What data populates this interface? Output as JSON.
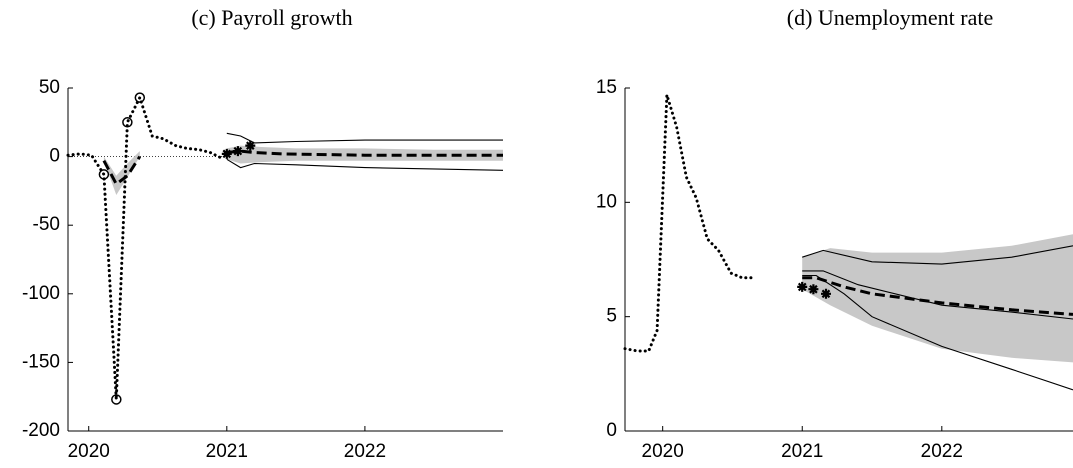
{
  "chart_data": [
    {
      "type": "line",
      "title": "(c) Payroll growth",
      "xlim": [
        2019.85,
        2023.0
      ],
      "xticks": [
        2020,
        2021,
        2022
      ],
      "ylim": [
        -200,
        50
      ],
      "yticks": [
        -200,
        -150,
        -100,
        -50,
        0,
        50
      ],
      "hline": 0,
      "series": [
        {
          "style": "band",
          "color": "#c8c8c8",
          "x": [
            2020.11,
            2020.2,
            2020.28,
            2020.37
          ],
          "lower": [
            -3,
            -28,
            -15,
            0
          ],
          "upper": [
            0,
            -14,
            -5,
            4
          ]
        },
        {
          "style": "band",
          "color": "#c8c8c8",
          "x": [
            2021,
            2021.1,
            2021.25,
            2021.5,
            2022,
            2022.5,
            2023
          ],
          "lower": [
            -2,
            -5,
            -4,
            -3,
            -3,
            -3,
            -3
          ],
          "upper": [
            6,
            8,
            7,
            6,
            6,
            5,
            5
          ]
        },
        {
          "style": "solid",
          "color": "#000000",
          "x": [
            2021,
            2021.1,
            2021.2,
            2021.5,
            2022,
            2023
          ],
          "values": [
            17,
            15,
            10,
            11,
            12,
            12
          ]
        },
        {
          "style": "solid",
          "color": "#000000",
          "x": [
            2021,
            2021.1,
            2021.2,
            2021.5,
            2022,
            2023
          ],
          "values": [
            -2,
            -8,
            -5,
            -6,
            -8,
            -10
          ]
        },
        {
          "style": "dashed",
          "color": "#000000",
          "x": [
            2020.11,
            2020.2,
            2020.28,
            2020.37,
            2020.7,
            2021,
            2021.1,
            2021.2,
            2021.4,
            2022,
            2023
          ],
          "values": [
            -3,
            -20,
            -14,
            0,
            null,
            3,
            4,
            3,
            2,
            1,
            1
          ]
        },
        {
          "style": "dotted",
          "color": "#000000",
          "x": [
            2019.85,
            2019.94,
            2020.02,
            2020.11,
            2020.2,
            2020.28,
            2020.37,
            2020.46,
            2020.54,
            2020.63,
            2020.71,
            2020.8,
            2020.88,
            2020.96
          ],
          "values": [
            1,
            2,
            1,
            -13,
            -177,
            25,
            43,
            15,
            13,
            8,
            6,
            5,
            3,
            -1
          ]
        },
        {
          "style": "circle",
          "color": "#000000",
          "x": [
            2020.11,
            2020.2,
            2020.28,
            2020.37
          ],
          "values": [
            -13,
            -177,
            25,
            43
          ]
        },
        {
          "style": "star",
          "color": "#000000",
          "x": [
            2021,
            2021.08,
            2021.17
          ],
          "values": [
            2,
            4,
            8
          ]
        }
      ]
    },
    {
      "type": "line",
      "title": "(d) Unemployment rate",
      "xlim": [
        2019.73,
        2022.94
      ],
      "xticks": [
        2020,
        2021,
        2022
      ],
      "ylim": [
        0,
        15
      ],
      "yticks": [
        0,
        5,
        10,
        15
      ],
      "series": [
        {
          "style": "band",
          "color": "#c8c8c8",
          "x": [
            2021,
            2021.2,
            2021.5,
            2022,
            2022.5,
            2022.94
          ],
          "lower": [
            6.2,
            5.5,
            4.6,
            3.6,
            3.2,
            3.0
          ],
          "upper": [
            7.6,
            8.0,
            7.8,
            7.8,
            8.1,
            8.6
          ]
        },
        {
          "style": "solid",
          "color": "#000000",
          "x": [
            2021,
            2021.15,
            2021.5,
            2022,
            2022.5,
            2022.94
          ],
          "values": [
            7.6,
            7.9,
            7.4,
            7.3,
            7.6,
            8.1
          ]
        },
        {
          "style": "solid",
          "color": "#000000",
          "x": [
            2021,
            2021.15,
            2021.4,
            2022,
            2022.5,
            2022.94
          ],
          "values": [
            7.0,
            7.0,
            6.4,
            5.5,
            5.2,
            4.9
          ]
        },
        {
          "style": "solid",
          "color": "#000000",
          "x": [
            2021,
            2021.1,
            2021.3,
            2021.5,
            2022,
            2022.5,
            2022.94
          ],
          "values": [
            6.8,
            6.8,
            6.0,
            5.0,
            3.7,
            2.7,
            1.8
          ]
        },
        {
          "style": "dashed",
          "color": "#000000",
          "x": [
            2021,
            2021.1,
            2021.3,
            2021.5,
            2022,
            2022.5,
            2022.94
          ],
          "values": [
            6.7,
            6.7,
            6.3,
            6.0,
            5.6,
            5.3,
            5.1
          ]
        },
        {
          "style": "dotted",
          "color": "#000000",
          "x": [
            2019.73,
            2019.82,
            2019.9,
            2019.96,
            2020.03,
            2020.1,
            2020.17,
            2020.24,
            2020.32,
            2020.4,
            2020.49,
            2020.57,
            2020.65
          ],
          "values": [
            3.6,
            3.5,
            3.5,
            4.4,
            14.7,
            13.3,
            11.1,
            10.2,
            8.4,
            7.9,
            6.9,
            6.7,
            6.7
          ]
        },
        {
          "style": "star",
          "color": "#000000",
          "x": [
            2021,
            2021.08,
            2021.17
          ],
          "values": [
            6.3,
            6.2,
            6.0
          ]
        }
      ]
    }
  ]
}
